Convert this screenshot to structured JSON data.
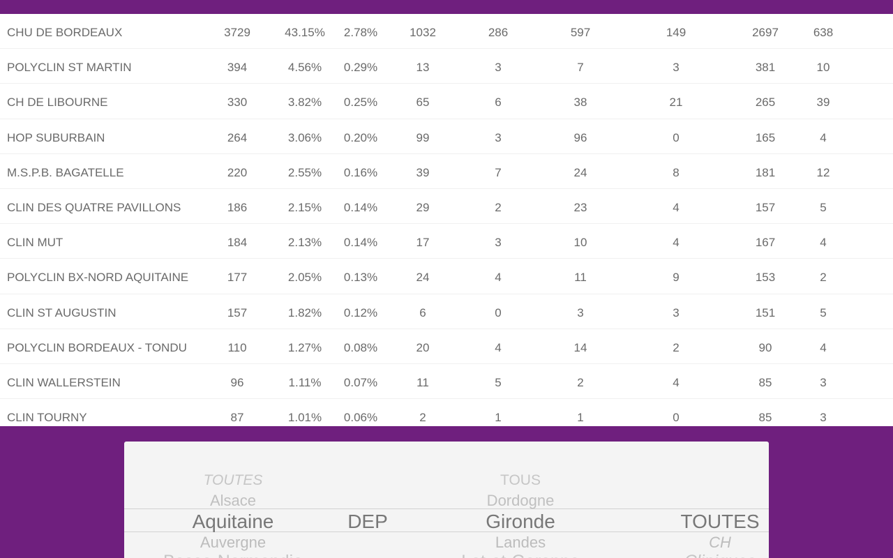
{
  "table": {
    "rows": [
      {
        "name": "CHU DE BORDEAUX",
        "values": [
          "3729",
          "43.15%",
          "2.78%",
          "1032",
          "286",
          "597",
          "149",
          "2697",
          "638"
        ]
      },
      {
        "name": "POLYCLIN ST MARTIN",
        "values": [
          "394",
          "4.56%",
          "0.29%",
          "13",
          "3",
          "7",
          "3",
          "381",
          "10"
        ]
      },
      {
        "name": "CH DE LIBOURNE",
        "values": [
          "330",
          "3.82%",
          "0.25%",
          "65",
          "6",
          "38",
          "21",
          "265",
          "39"
        ]
      },
      {
        "name": "HOP SUBURBAIN",
        "values": [
          "264",
          "3.06%",
          "0.20%",
          "99",
          "3",
          "96",
          "0",
          "165",
          "4"
        ]
      },
      {
        "name": "M.S.P.B. BAGATELLE",
        "values": [
          "220",
          "2.55%",
          "0.16%",
          "39",
          "7",
          "24",
          "8",
          "181",
          "12"
        ]
      },
      {
        "name": "CLIN DES QUATRE PAVILLONS",
        "values": [
          "186",
          "2.15%",
          "0.14%",
          "29",
          "2",
          "23",
          "4",
          "157",
          "5"
        ]
      },
      {
        "name": "CLIN MUT",
        "values": [
          "184",
          "2.13%",
          "0.14%",
          "17",
          "3",
          "10",
          "4",
          "167",
          "4"
        ]
      },
      {
        "name": "POLYCLIN BX-NORD AQUITAINE",
        "values": [
          "177",
          "2.05%",
          "0.13%",
          "24",
          "4",
          "11",
          "9",
          "153",
          "2"
        ]
      },
      {
        "name": "CLIN ST AUGUSTIN",
        "values": [
          "157",
          "1.82%",
          "0.12%",
          "6",
          "0",
          "3",
          "3",
          "151",
          "5"
        ]
      },
      {
        "name": "POLYCLIN BORDEAUX - TONDU",
        "values": [
          "110",
          "1.27%",
          "0.08%",
          "20",
          "4",
          "14",
          "2",
          "90",
          "4"
        ]
      },
      {
        "name": "CLIN WALLERSTEIN",
        "values": [
          "96",
          "1.11%",
          "0.07%",
          "11",
          "5",
          "2",
          "4",
          "85",
          "3"
        ]
      },
      {
        "name": "CLIN TOURNY",
        "values": [
          "87",
          "1.01%",
          "0.06%",
          "2",
          "1",
          "1",
          "0",
          "85",
          "3"
        ]
      }
    ]
  },
  "picker": {
    "region": {
      "options": [
        "TOUTES",
        "Alsace",
        "Aquitaine",
        "Auvergne",
        "Basse-Normandie"
      ],
      "selected": "Aquitaine"
    },
    "level": {
      "options": [
        "DEP"
      ],
      "selected": "DEP"
    },
    "department": {
      "options": [
        "TOUS",
        "Dordogne",
        "Gironde",
        "Landes",
        "Lot-et-Garonne"
      ],
      "selected": "Gironde"
    },
    "category": {
      "options": [
        "TOUTES",
        "CH",
        "Cliniques"
      ],
      "selected": "TOUTES"
    }
  },
  "colors": {
    "brand_purple": "#6f1f7e",
    "text_gray": "#6a6a6a"
  }
}
